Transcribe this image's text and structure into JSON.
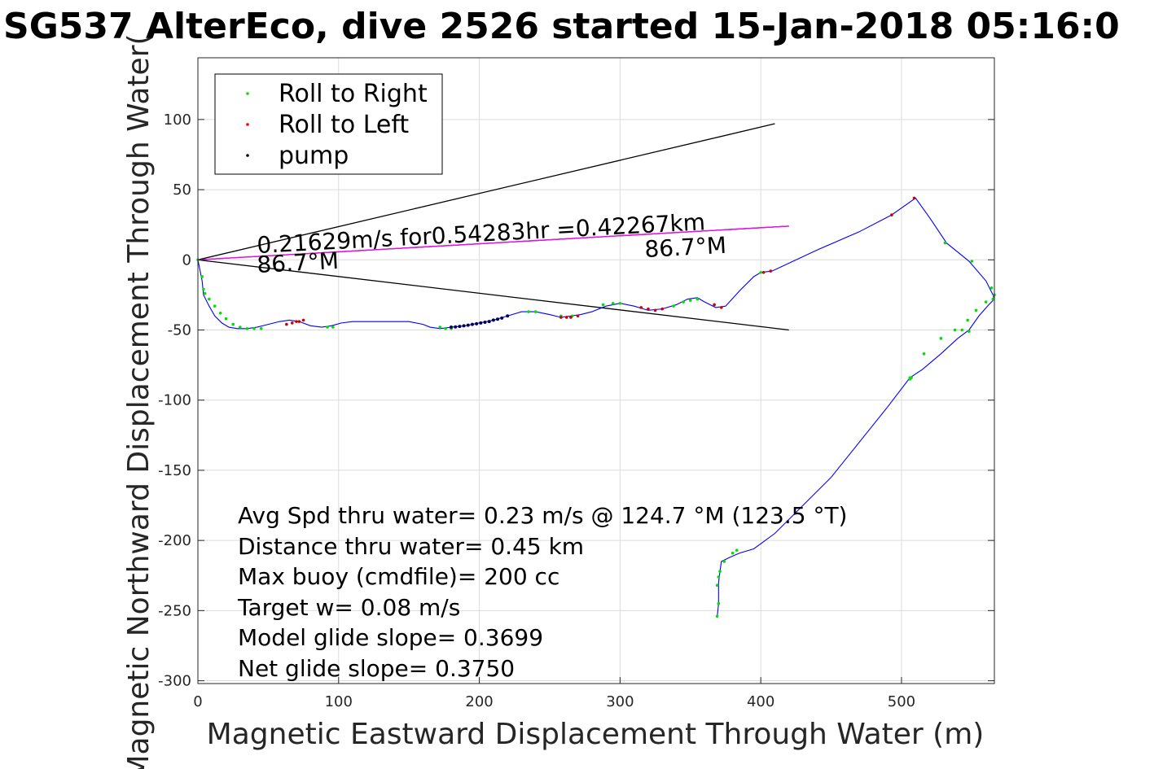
{
  "chart_data": {
    "type": "scatter",
    "title": "SG537 AlterEco, dive 2526 started 15-Jan-2018 05:16:0",
    "xlabel": "Magnetic Eastward Displacement Through Water (m)",
    "ylabel": "Magnetic Northward Displacement Through Water(",
    "xlim": [
      0,
      566
    ],
    "ylim": [
      -302,
      144
    ],
    "xticks": [
      0,
      100,
      200,
      300,
      400,
      500
    ],
    "yticks": [
      100,
      50,
      0,
      -50,
      -100,
      -150,
      -200,
      -250,
      -300
    ],
    "grid": true,
    "legend_position": "top-left",
    "legend": [
      {
        "label": "Roll to Right",
        "color": "#00e000"
      },
      {
        "label": "Roll to Left",
        "color": "#ff0000"
      },
      {
        "label": "pump",
        "color": "#000000"
      }
    ],
    "track": {
      "color": "#0000ff",
      "x": [
        0,
        3,
        4,
        8,
        12,
        17,
        22,
        28,
        35,
        42,
        50,
        58,
        65,
        72,
        80,
        88,
        95,
        102,
        110,
        120,
        130,
        140,
        150,
        160,
        165,
        172,
        180,
        190,
        200,
        210,
        220,
        230,
        240,
        250,
        258,
        265,
        272,
        280,
        290,
        300,
        310,
        320,
        330,
        340,
        348,
        355,
        360,
        368,
        375,
        385,
        395,
        400,
        408,
        440,
        470,
        493,
        510,
        520,
        532,
        548,
        560,
        565,
        566,
        562,
        555,
        548,
        540,
        528,
        515,
        506,
        490,
        470,
        450,
        430,
        410,
        395,
        385,
        378,
        372,
        371,
        370,
        370,
        369
      ],
      "y": [
        0,
        -15,
        -25,
        -33,
        -40,
        -45,
        -48,
        -49,
        -49,
        -48,
        -46,
        -44,
        -43,
        -44,
        -47,
        -48,
        -47,
        -45,
        -44,
        -44,
        -44,
        -44,
        -44,
        -46,
        -48,
        -49,
        -48,
        -47,
        -45,
        -43,
        -40,
        -37,
        -37,
        -39,
        -41,
        -40,
        -39,
        -37,
        -33,
        -31,
        -33,
        -36,
        -35,
        -32,
        -28,
        -27,
        -30,
        -34,
        -33,
        -22,
        -12,
        -9,
        -8,
        7,
        20,
        32,
        44,
        30,
        12,
        -1,
        -15,
        -25,
        -28,
        -32,
        -40,
        -50,
        -56,
        -67,
        -78,
        -84,
        -105,
        -130,
        -155,
        -175,
        -195,
        -206,
        -209,
        -212,
        -215,
        -222,
        -230,
        -245,
        -255
      ]
    },
    "roll_right": {
      "x": [
        0,
        3,
        4,
        5,
        8,
        12,
        16,
        20,
        25,
        30,
        35,
        40,
        45,
        92,
        96,
        172,
        176,
        180,
        235,
        240,
        258,
        266,
        288,
        295,
        300,
        338,
        345,
        350,
        355,
        400,
        506,
        507,
        531,
        543,
        548,
        550,
        564,
        566,
        565,
        560,
        553,
        547,
        538,
        528,
        516,
        506,
        383,
        380,
        374,
        371,
        370,
        369,
        370,
        369
      ],
      "y": [
        0,
        -12,
        -21,
        -24,
        -28,
        -33,
        -38,
        -42,
        -46,
        -48,
        -49,
        -49,
        -49,
        -48,
        -48,
        -48,
        -49,
        -49,
        -37,
        -37,
        -40,
        -40,
        -32,
        -31,
        -31,
        -33,
        -30,
        -29,
        -28,
        -9,
        -85,
        -84,
        12,
        -50,
        -51,
        -1,
        -20,
        -25,
        -28,
        -30,
        -36,
        -43,
        -50,
        -56,
        -67,
        -84,
        -207,
        -209,
        -215,
        -222,
        -226,
        -232,
        -245,
        -254
      ]
    },
    "roll_left": {
      "x": [
        63,
        67,
        70,
        72,
        75,
        258,
        262,
        265,
        270,
        315,
        320,
        325,
        330,
        367,
        372,
        402,
        407,
        493,
        509
      ],
      "y": [
        -46,
        -45,
        -44,
        -44,
        -43,
        -41,
        -41,
        -41,
        -40,
        -34,
        -35,
        -36,
        -35,
        -32,
        -34,
        -9,
        -8,
        32,
        44
      ]
    },
    "pump": {
      "x": [
        180,
        183,
        186,
        189,
        192,
        195,
        198,
        201,
        204,
        207,
        210,
        213,
        216,
        220
      ],
      "y": [
        -48,
        -47.8,
        -47.5,
        -47,
        -46.6,
        -46,
        -45.6,
        -45,
        -44.5,
        -44,
        -43,
        -42.3,
        -41.5,
        -40
      ]
    },
    "wedge_lines": [
      {
        "from": [
          0,
          0
        ],
        "to": [
          410,
          97
        ],
        "color": "#000000"
      },
      {
        "from": [
          0,
          0
        ],
        "to": [
          420,
          -50
        ],
        "color": "#000000"
      },
      {
        "from": [
          0,
          0
        ],
        "to": [
          420,
          24
        ],
        "color": "#000000"
      },
      {
        "from": [
          0,
          0
        ],
        "to": [
          420,
          24
        ],
        "color": "#ff00ff"
      }
    ],
    "line_annotation": "0.21629m/s for0.54283hr =0.42267km",
    "angle_labels": [
      "86.7°M",
      "86.7°M"
    ],
    "stats": [
      "Avg Spd thru water=  0.23 m/s @ 124.7 °M (123.5 °T)",
      "Distance thru water=  0.45 km",
      "Max buoy (cmdfile)= 200 cc",
      "Target w= 0.08 m/s",
      "Model glide slope= 0.3699",
      "Net glide slope= 0.3750"
    ]
  }
}
